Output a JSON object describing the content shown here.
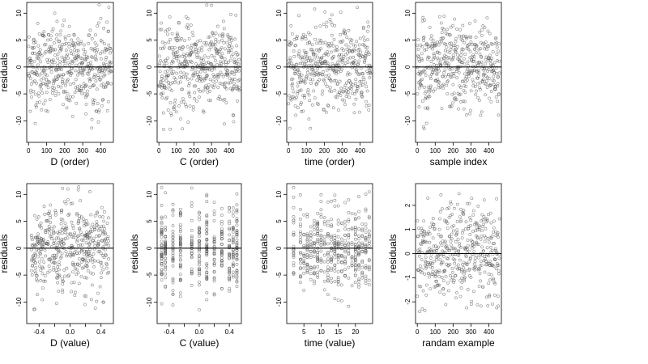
{
  "chart_data": [
    {
      "type": "scatter",
      "xlabel": "D (order)",
      "ylabel": "residuals",
      "xlim": [
        -10,
        470
      ],
      "ylim": [
        -14,
        12
      ],
      "xticks": [
        0,
        100,
        200,
        300,
        400
      ],
      "xtick_labels": [
        "0",
        "100",
        "200",
        "300",
        "400"
      ],
      "yticks": [
        -10,
        -5,
        0,
        5,
        10
      ],
      "ytick_labels": [
        "-10",
        "-5",
        "0",
        "5",
        "10"
      ],
      "hline": 0,
      "n_points": 460,
      "point_spread": 4,
      "pattern": "index"
    },
    {
      "type": "scatter",
      "xlabel": "C (order)",
      "ylabel": "residuals",
      "xlim": [
        -10,
        470
      ],
      "ylim": [
        -14,
        12
      ],
      "xticks": [
        0,
        100,
        200,
        300,
        400
      ],
      "xtick_labels": [
        "0",
        "100",
        "200",
        "300",
        "400"
      ],
      "yticks": [
        -10,
        -5,
        0,
        5,
        10
      ],
      "ytick_labels": [
        "-10",
        "-5",
        "0",
        "5",
        "10"
      ],
      "hline": 0,
      "n_points": 460,
      "point_spread": 4,
      "pattern": "index"
    },
    {
      "type": "scatter",
      "xlabel": "time (order)",
      "ylabel": "residuals",
      "xlim": [
        -10,
        470
      ],
      "ylim": [
        -14,
        12
      ],
      "xticks": [
        0,
        100,
        200,
        300,
        400
      ],
      "xtick_labels": [
        "0",
        "100",
        "200",
        "300",
        "400"
      ],
      "yticks": [
        -10,
        -5,
        0,
        5,
        10
      ],
      "ytick_labels": [
        "-10",
        "-5",
        "0",
        "5",
        "10"
      ],
      "hline": 0,
      "n_points": 460,
      "point_spread": 4,
      "pattern": "index"
    },
    {
      "type": "scatter",
      "xlabel": "sample index",
      "ylabel": "residuals",
      "xlim": [
        -10,
        470
      ],
      "ylim": [
        -14,
        12
      ],
      "xticks": [
        0,
        100,
        200,
        300,
        400
      ],
      "xtick_labels": [
        "0",
        "100",
        "200",
        "300",
        "400"
      ],
      "yticks": [
        -10,
        -5,
        0,
        5,
        10
      ],
      "ytick_labels": [
        "-10",
        "-5",
        "0",
        "5",
        "10"
      ],
      "hline": 0,
      "n_points": 460,
      "point_spread": 4,
      "pattern": "index"
    },
    {
      "type": "scatter",
      "xlabel": "D (value)",
      "ylabel": "residuals",
      "xlim": [
        -0.56,
        0.56
      ],
      "ylim": [
        -14,
        12
      ],
      "xticks": [
        -0.4,
        0.0,
        0.4
      ],
      "xtick_labels": [
        "-0.4",
        "0.0",
        "0.4"
      ],
      "xticks_unlabeled": [
        -0.2,
        0.2
      ],
      "yticks": [
        -10,
        -5,
        0,
        5,
        10
      ],
      "ytick_labels": [
        "-10",
        "-5",
        "0",
        "5",
        "10"
      ],
      "hline": 0,
      "n_points": 460,
      "point_spread": 4,
      "pattern": "uniform"
    },
    {
      "type": "scatter",
      "xlabel": "C (value)",
      "ylabel": "residuals",
      "xlim": [
        -0.56,
        0.56
      ],
      "ylim": [
        -14,
        12
      ],
      "xticks": [
        -0.4,
        0.0,
        0.4
      ],
      "xtick_labels": [
        "-0.4",
        "0.0",
        "0.4"
      ],
      "xticks_unlabeled": [
        -0.2,
        0.2
      ],
      "yticks": [
        -10,
        -5,
        0,
        5,
        10
      ],
      "ytick_labels": [
        "-10",
        "-5",
        "0",
        "5",
        "10"
      ],
      "hline": 0,
      "n_points": 460,
      "point_spread": 4,
      "pattern": "discrete",
      "x_levels": [
        -0.5,
        -0.45,
        -0.35,
        -0.25,
        -0.1,
        0.0,
        0.1,
        0.2,
        0.3,
        0.4,
        0.45,
        0.5
      ]
    },
    {
      "type": "scatter",
      "xlabel": "time (value)",
      "ylabel": "residuals",
      "xlim": [
        0,
        25
      ],
      "ylim": [
        -14,
        12
      ],
      "xticks": [
        5,
        10,
        15,
        20
      ],
      "xtick_labels": [
        "5",
        "10",
        "15",
        "20"
      ],
      "yticks": [
        -10,
        -5,
        0,
        5,
        10
      ],
      "ytick_labels": [
        "-10",
        "-5",
        "0",
        "5",
        "10"
      ],
      "hline": 0,
      "n_points": 460,
      "point_spread": 4,
      "pattern": "discrete",
      "x_levels": [
        2,
        4,
        5,
        6,
        7,
        8,
        9,
        10,
        11,
        12,
        13,
        14,
        15,
        16,
        17,
        18,
        19,
        20,
        21,
        22,
        23,
        24
      ]
    },
    {
      "type": "scatter",
      "xlabel": "randam example",
      "ylabel": "residuals",
      "xlim": [
        -10,
        470
      ],
      "ylim": [
        -2.9,
        2.9
      ],
      "xticks": [
        0,
        100,
        200,
        300,
        400
      ],
      "xtick_labels": [
        "0",
        "100",
        "200",
        "300",
        "400"
      ],
      "yticks": [
        -2,
        -1,
        0,
        1,
        2
      ],
      "ytick_labels": [
        "-2",
        "-1",
        "0",
        "1",
        "2"
      ],
      "hline": 0,
      "n_points": 460,
      "point_spread": 1,
      "pattern": "index"
    }
  ],
  "style": {
    "point_color": "#555555",
    "axis_color": "#000000",
    "hline_color": "#000000"
  }
}
